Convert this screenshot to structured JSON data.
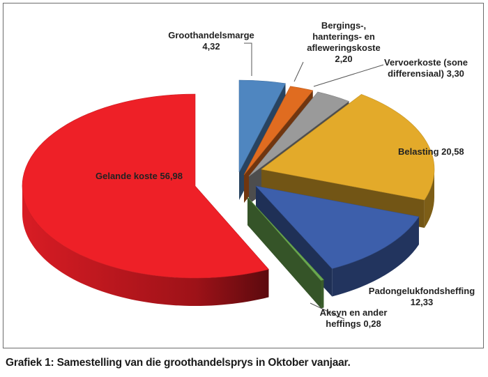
{
  "caption": "Grafiek 1: Samestelling van die groothandelsprys in Oktober vanjaar.",
  "chart_data": {
    "type": "pie",
    "title": "",
    "labels_visible": true,
    "slices": [
      {
        "name": "Groothandelsmarge",
        "value": 4.32,
        "label_lines": [
          "Groothandelsmarge",
          "4,32"
        ],
        "color": "#4f86c0"
      },
      {
        "name": "Bergings-, hanterings- en afleweringskoste",
        "value": 2.2,
        "label_lines": [
          "Bergings-,",
          "hanterings- en",
          "afleweringskoste",
          "2,20"
        ],
        "color": "#e06c20"
      },
      {
        "name": "Vervoerkoste (sone differensiaal)",
        "value": 3.3,
        "label_lines": [
          "Vervoerkoste (sone",
          "differensiaal) 3,30"
        ],
        "color": "#9a9a9a"
      },
      {
        "name": "Belasting",
        "value": 20.58,
        "label_lines": [
          "Belasting 20,58"
        ],
        "color": "#e3aa2a"
      },
      {
        "name": "Padongelukfondsheffing",
        "value": 12.33,
        "label_lines": [
          "Padongelukfondsheffing",
          "12,33"
        ],
        "color": "#3d5fab"
      },
      {
        "name": "Aksyn en ander heffings",
        "value": 0.28,
        "label_lines": [
          "Aksyn en ander",
          "heffings 0,28"
        ],
        "color": "#6aa84f"
      },
      {
        "name": "Gelande koste",
        "value": 56.98,
        "label_lines": [
          "Gelande koste 56,98"
        ],
        "color": "#ee2027"
      }
    ]
  }
}
